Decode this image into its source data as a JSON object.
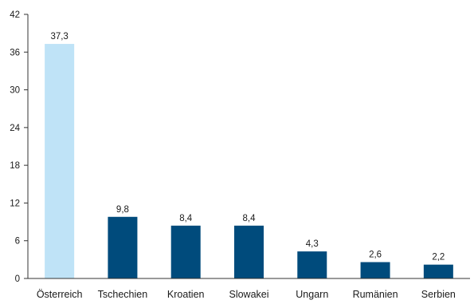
{
  "chart_data": {
    "type": "bar",
    "categories": [
      "Österreich",
      "Tschechien",
      "Kroatien",
      "Slowakei",
      "Ungarn",
      "Rumänien",
      "Serbien"
    ],
    "values": [
      37.3,
      9.8,
      8.4,
      8.4,
      4.3,
      2.6,
      2.2
    ],
    "value_labels": [
      "37,3",
      "9,8",
      "8,4",
      "8,4",
      "4,3",
      "2,6",
      "2,2"
    ],
    "yticks": [
      0,
      6,
      12,
      18,
      24,
      30,
      36,
      42
    ],
    "ylim": [
      0,
      42
    ],
    "grid": false,
    "title": "",
    "xlabel": "",
    "ylabel": "",
    "colors": {
      "highlight": "#bfe3f7",
      "bar": "#004b7c",
      "axis": "#333333"
    },
    "highlight_index": 0
  }
}
